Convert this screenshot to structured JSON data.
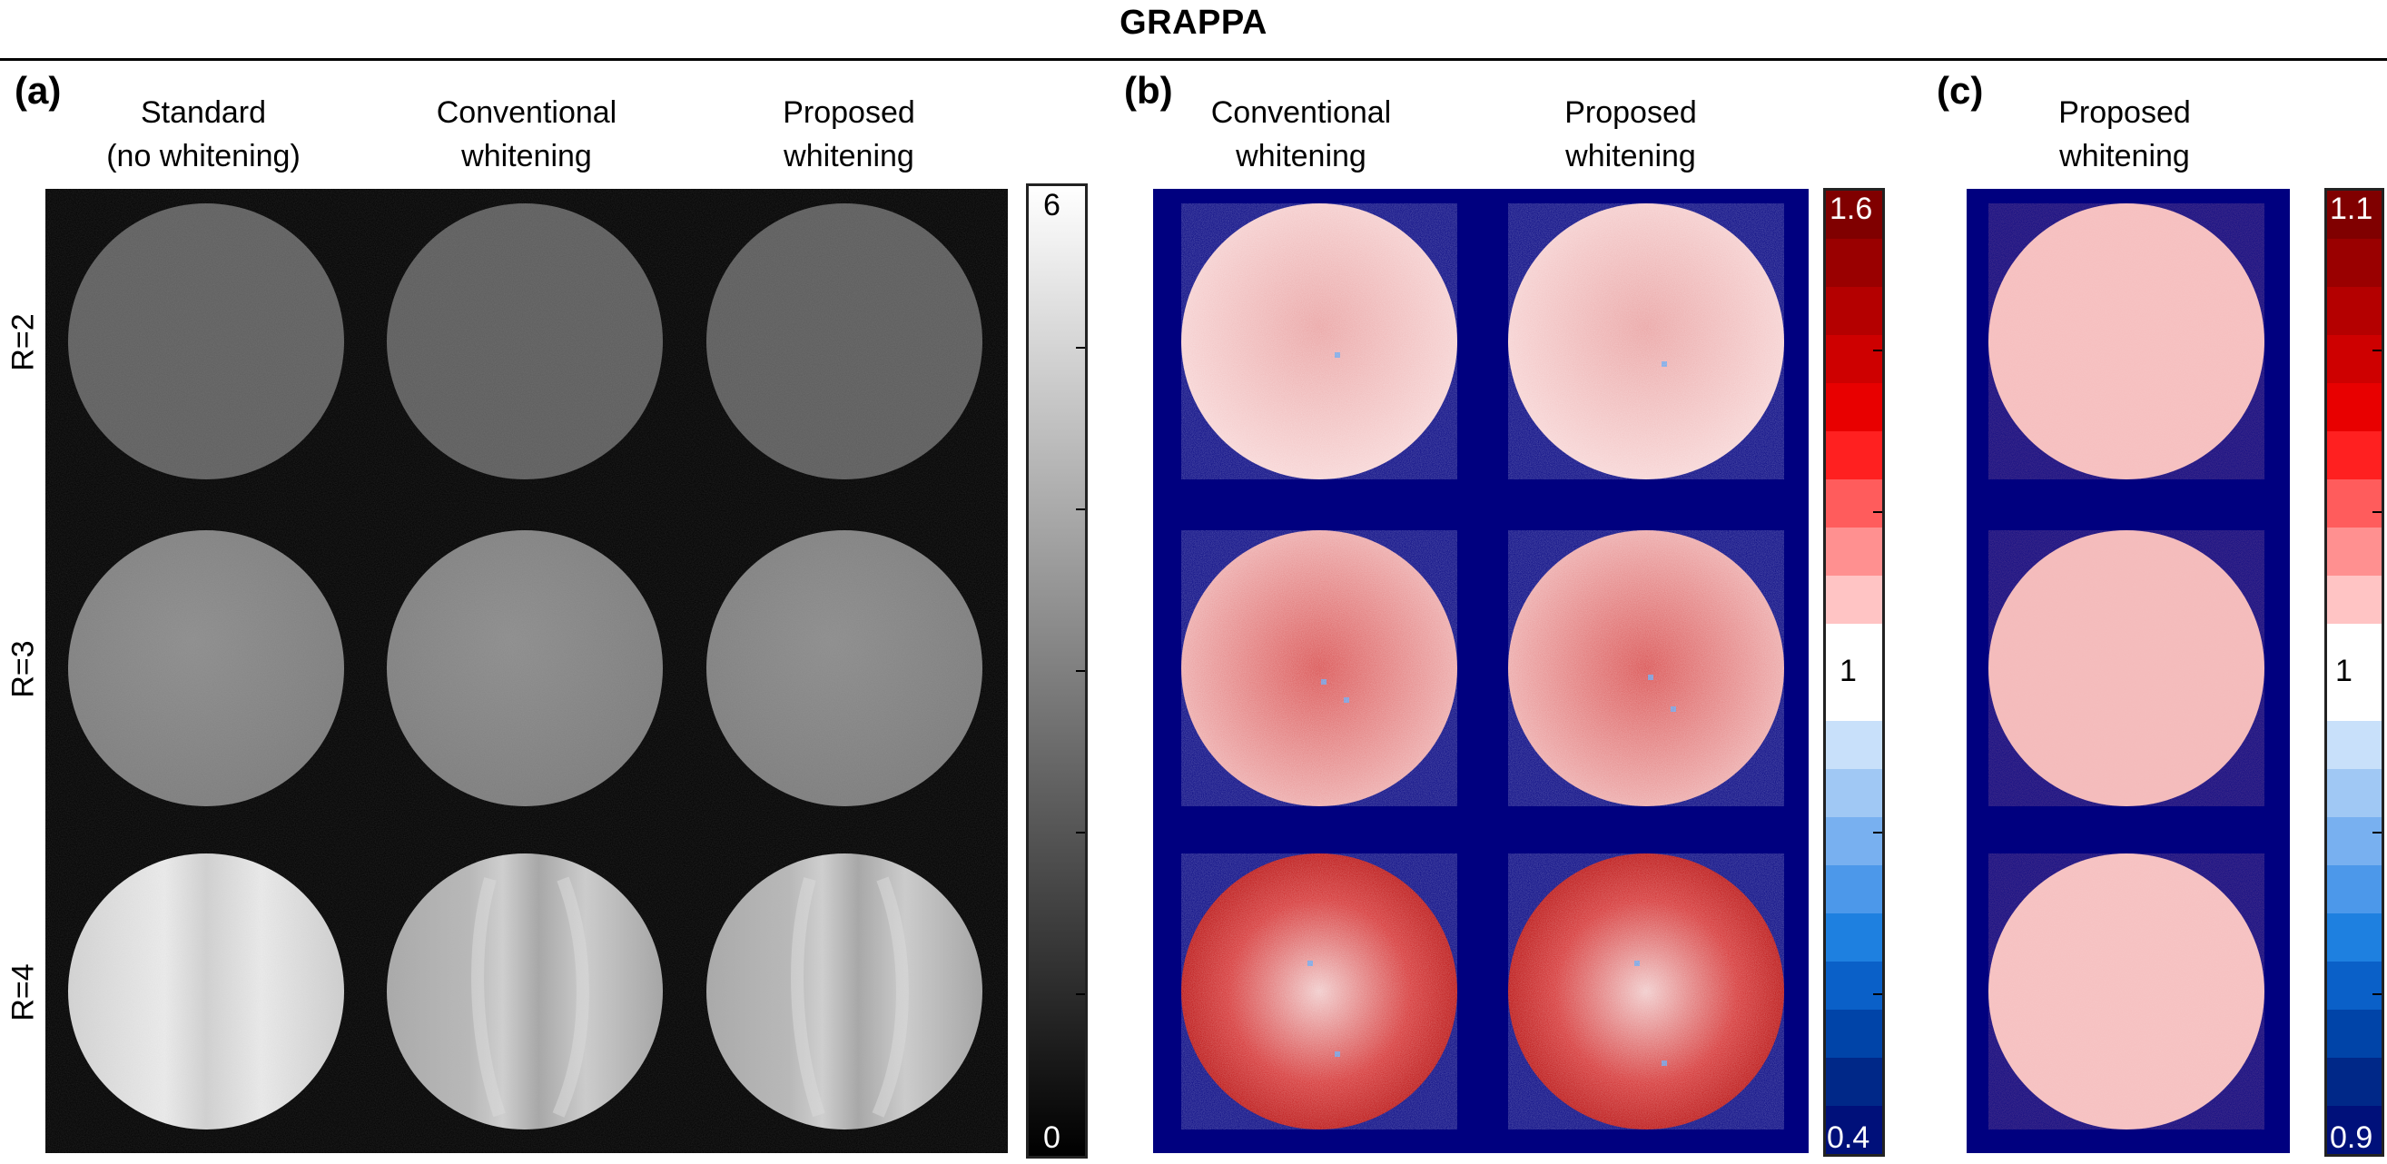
{
  "figure": {
    "title": "GRAPPA",
    "panels": [
      {
        "label": "(a)",
        "columns": [
          [
            "Standard",
            "(no whitening)"
          ],
          [
            "Conventional",
            "whitening"
          ],
          [
            "Proposed",
            "whitening"
          ]
        ],
        "rows": [
          "R=2",
          "R=3",
          "R=4"
        ],
        "colorbar": {
          "max_label": "6",
          "min_label": "0",
          "scale": "gray",
          "range": [
            0,
            6
          ]
        }
      },
      {
        "label": "(b)",
        "columns": [
          [
            "Conventional",
            "whitening"
          ],
          [
            "Proposed",
            "whitening"
          ]
        ],
        "colorbar": {
          "max_label": "1.6",
          "mid_label": "1",
          "min_label": "0.4",
          "scale": "blue-white-red",
          "range": [
            0.4,
            1.6
          ]
        }
      },
      {
        "label": "(c)",
        "columns": [
          [
            "Proposed",
            "whitening"
          ]
        ],
        "colorbar": {
          "max_label": "1.1",
          "mid_label": "1",
          "min_label": "0.9",
          "scale": "blue-white-red",
          "range": [
            0.9,
            1.1
          ]
        }
      }
    ],
    "colors": {
      "background_a": "#000000",
      "background_bc": "#00007f",
      "ratio_red": "#b00000",
      "ratio_blue": "#1e7ae6"
    }
  }
}
